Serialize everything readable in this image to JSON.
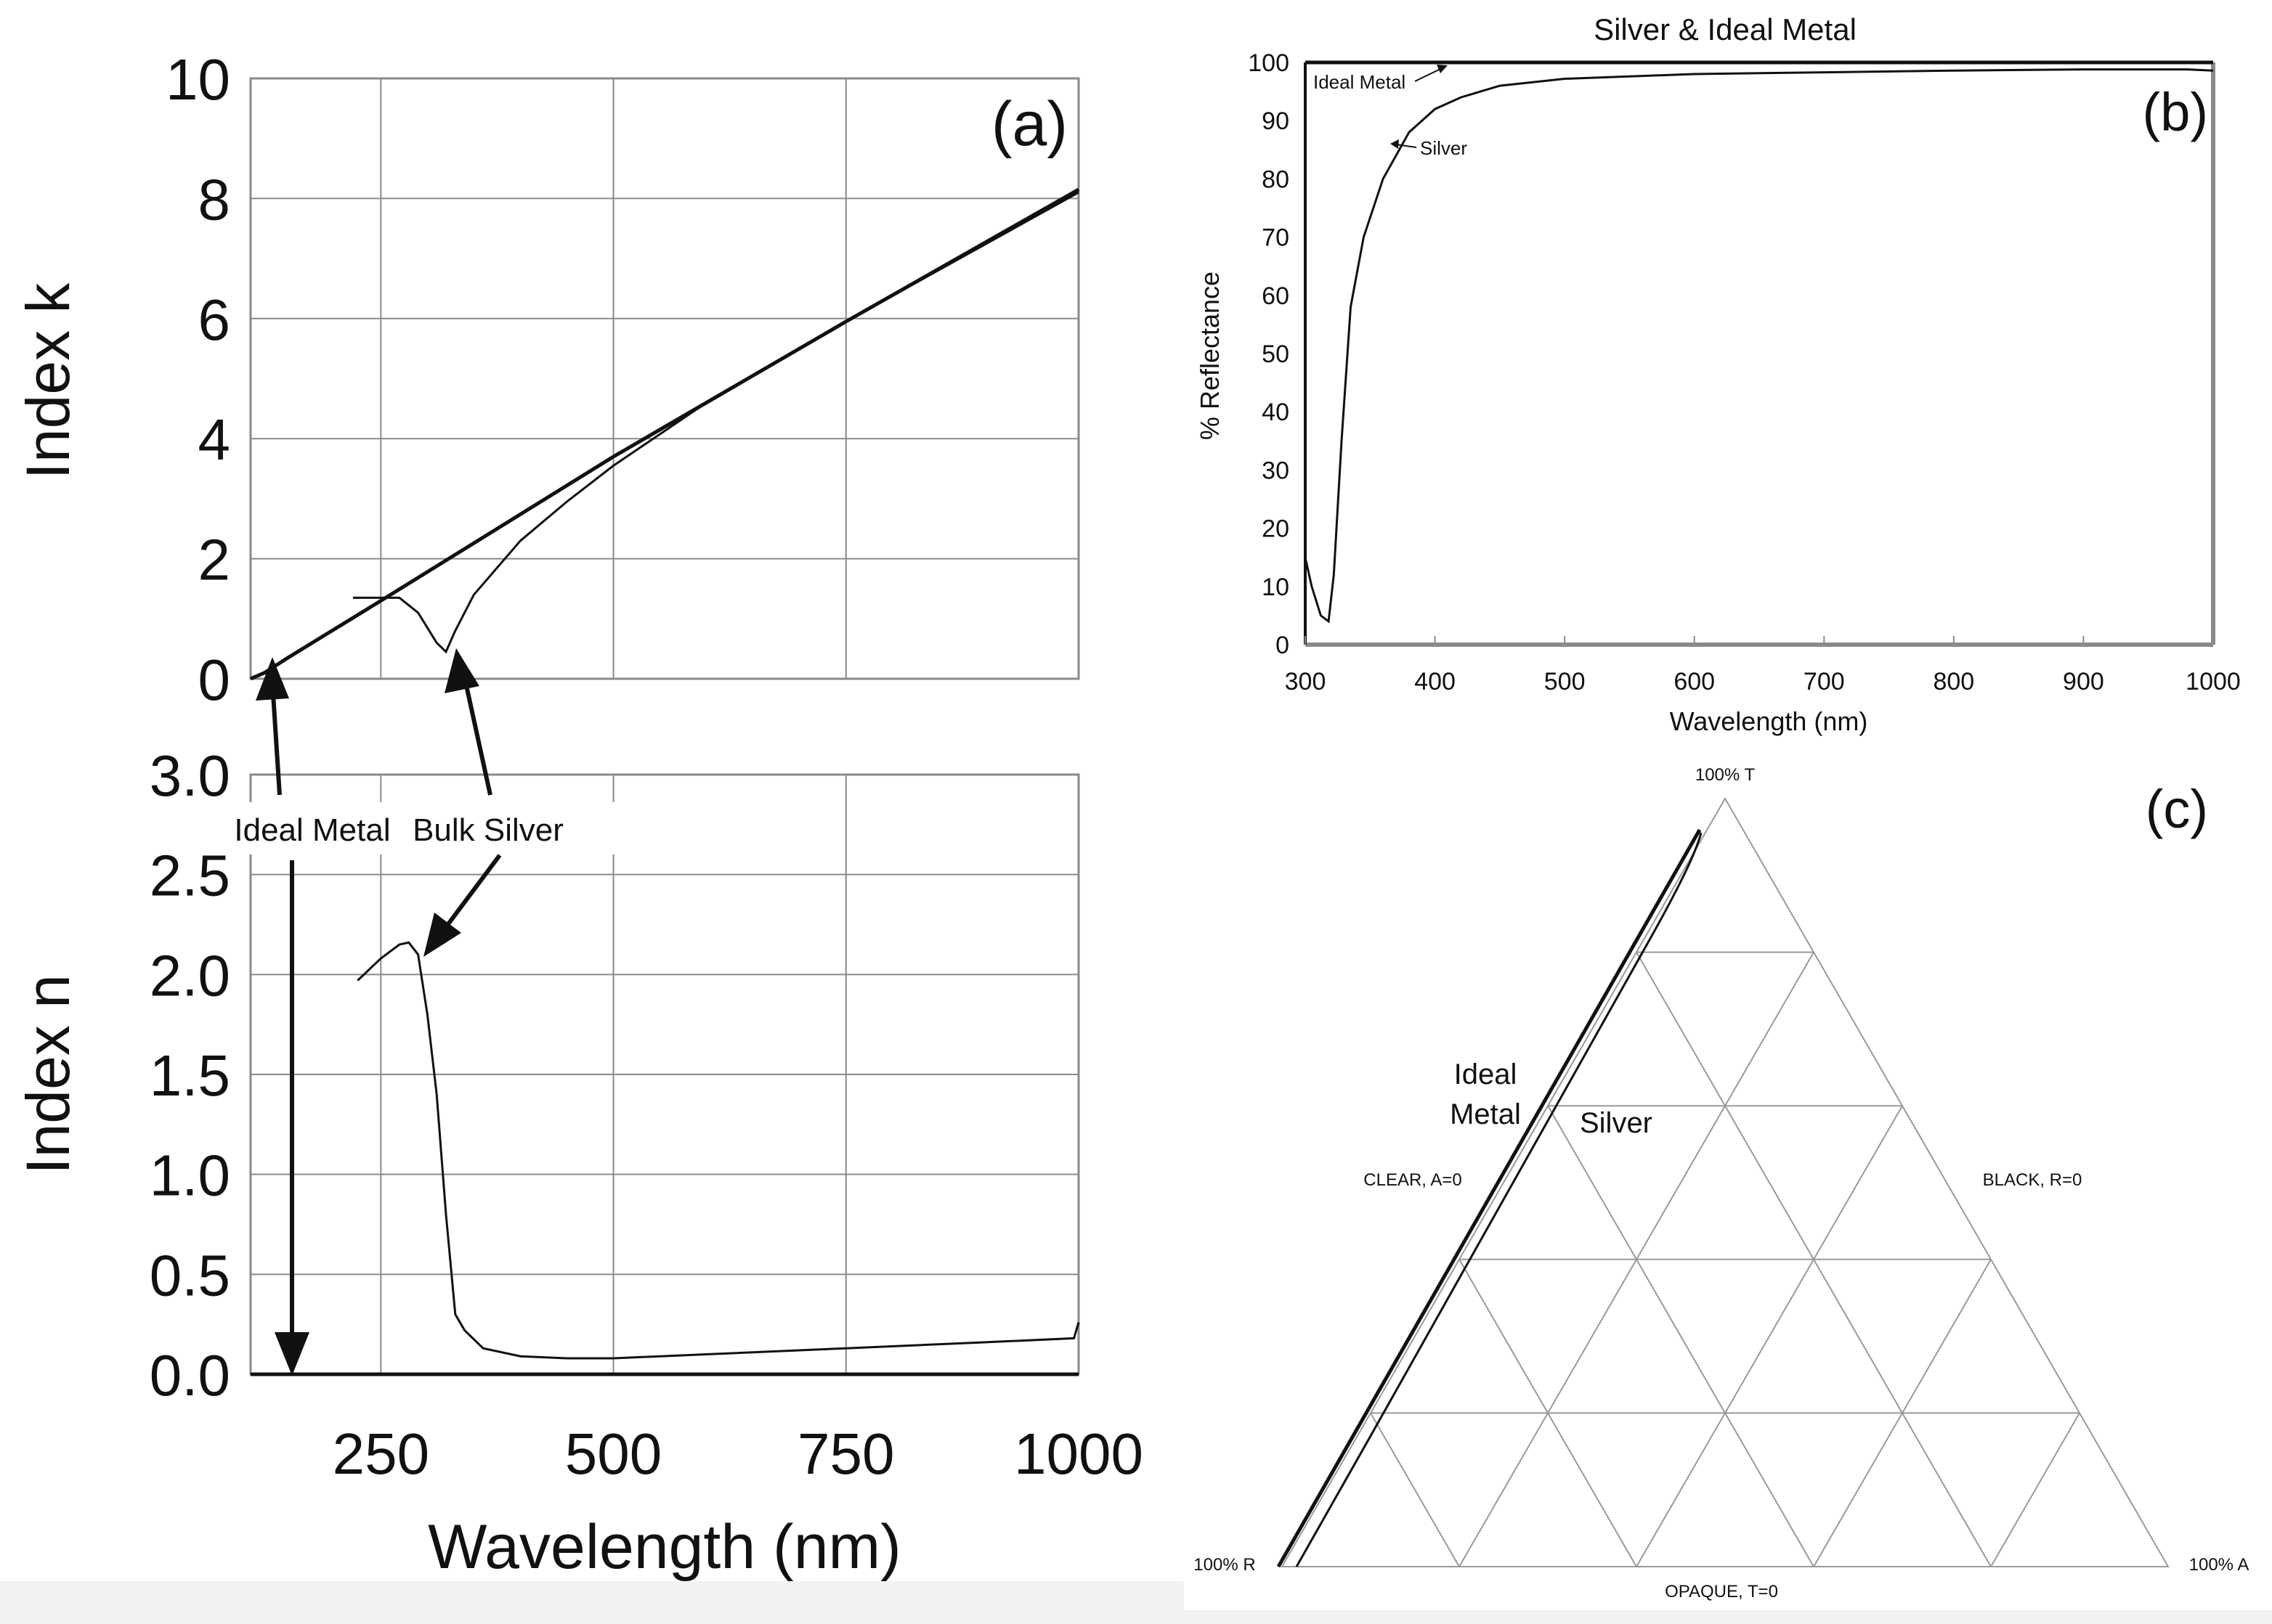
{
  "chart_data": [
    {
      "panel": "a",
      "type": "line",
      "label": "(a)",
      "xlabel": "Wavelength (nm)",
      "x_ticks": [
        250,
        500,
        750,
        1000
      ],
      "xlim": [
        110,
        1000
      ],
      "subplots": [
        {
          "ylabel": "Index k",
          "ylim": [
            0,
            10
          ],
          "y_ticks": [
            "0",
            "2",
            "4",
            "6",
            "8",
            "10"
          ],
          "series": [
            {
              "name": "Ideal Metal",
              "points": [
                [
                  110,
                  0
                ],
                [
                  125,
                  0.1
                ],
                [
                  150,
                  0.35
                ],
                [
                  250,
                  1.3
                ],
                [
                  500,
                  3.7
                ],
                [
                  750,
                  5.95
                ],
                [
                  1000,
                  8.15
                ]
              ]
            },
            {
              "name": "Bulk Silver",
              "points": [
                [
                  220,
                  1.35
                ],
                [
                  250,
                  1.35
                ],
                [
                  270,
                  1.35
                ],
                [
                  290,
                  1.1
                ],
                [
                  310,
                  0.6
                ],
                [
                  320,
                  0.45
                ],
                [
                  330,
                  0.8
                ],
                [
                  350,
                  1.4
                ],
                [
                  400,
                  2.3
                ],
                [
                  450,
                  2.95
                ],
                [
                  500,
                  3.55
                ],
                [
                  600,
                  4.6
                ],
                [
                  750,
                  5.95
                ],
                [
                  1000,
                  8.1
                ]
              ]
            }
          ]
        },
        {
          "ylabel": "Index n",
          "ylim": [
            0,
            3
          ],
          "y_ticks": [
            "0.0",
            "0.5",
            "1.0",
            "1.5",
            "2.0",
            "2.5",
            "3.0"
          ],
          "series": [
            {
              "name": "Ideal Metal",
              "points": [
                [
                  110,
                  0
                ],
                [
                  1000,
                  0
                ]
              ]
            },
            {
              "name": "Bulk Silver",
              "points": [
                [
                  225,
                  1.97
                ],
                [
                  250,
                  2.08
                ],
                [
                  270,
                  2.15
                ],
                [
                  280,
                  2.16
                ],
                [
                  290,
                  2.1
                ],
                [
                  300,
                  1.8
                ],
                [
                  310,
                  1.4
                ],
                [
                  320,
                  0.8
                ],
                [
                  330,
                  0.3
                ],
                [
                  340,
                  0.22
                ],
                [
                  360,
                  0.13
                ],
                [
                  400,
                  0.09
                ],
                [
                  450,
                  0.08
                ],
                [
                  500,
                  0.08
                ],
                [
                  600,
                  0.1
                ],
                [
                  750,
                  0.13
                ],
                [
                  900,
                  0.16
                ],
                [
                  995,
                  0.18
                ],
                [
                  1000,
                  0.26
                ]
              ]
            }
          ]
        }
      ],
      "annotations": [
        "Ideal Metal",
        "Bulk Silver"
      ]
    },
    {
      "panel": "b",
      "type": "line",
      "label": "(b)",
      "title": "Silver & Ideal Metal",
      "xlabel": "Wavelength (nm)",
      "ylabel": "% Reflectance",
      "xlim": [
        300,
        1000
      ],
      "ylim": [
        0,
        100
      ],
      "x_ticks": [
        300,
        400,
        500,
        600,
        700,
        800,
        900,
        1000
      ],
      "y_ticks": [
        0,
        10,
        20,
        30,
        40,
        50,
        60,
        70,
        80,
        90,
        100
      ],
      "series": [
        {
          "name": "Ideal Metal",
          "points": [
            [
              300,
              100
            ],
            [
              1000,
              100
            ]
          ]
        },
        {
          "name": "Silver",
          "points": [
            [
              300,
              15
            ],
            [
              305,
              10
            ],
            [
              312,
              5
            ],
            [
              318,
              4
            ],
            [
              322,
              12
            ],
            [
              328,
              35
            ],
            [
              335,
              58
            ],
            [
              345,
              70
            ],
            [
              360,
              80
            ],
            [
              380,
              88
            ],
            [
              400,
              92
            ],
            [
              420,
              94
            ],
            [
              450,
              96
            ],
            [
              500,
              97.2
            ],
            [
              600,
              98
            ],
            [
              700,
              98.3
            ],
            [
              800,
              98.6
            ],
            [
              900,
              98.8
            ],
            [
              980,
              98.8
            ],
            [
              1000,
              98.6
            ]
          ]
        }
      ],
      "annotations": [
        "Ideal Metal",
        "Silver"
      ]
    },
    {
      "panel": "c",
      "type": "ternary",
      "label": "(c)",
      "vertex_labels": {
        "top": "100% T",
        "left": "100% R",
        "right": "100% A"
      },
      "edge_labels": {
        "left": "CLEAR, A=0",
        "right": "BLACK, R=0",
        "bottom": "OPAQUE, T=0"
      },
      "series_labels": {
        "ideal_line1": "Ideal",
        "ideal_line2": "Metal",
        "silver": "Silver"
      }
    }
  ]
}
